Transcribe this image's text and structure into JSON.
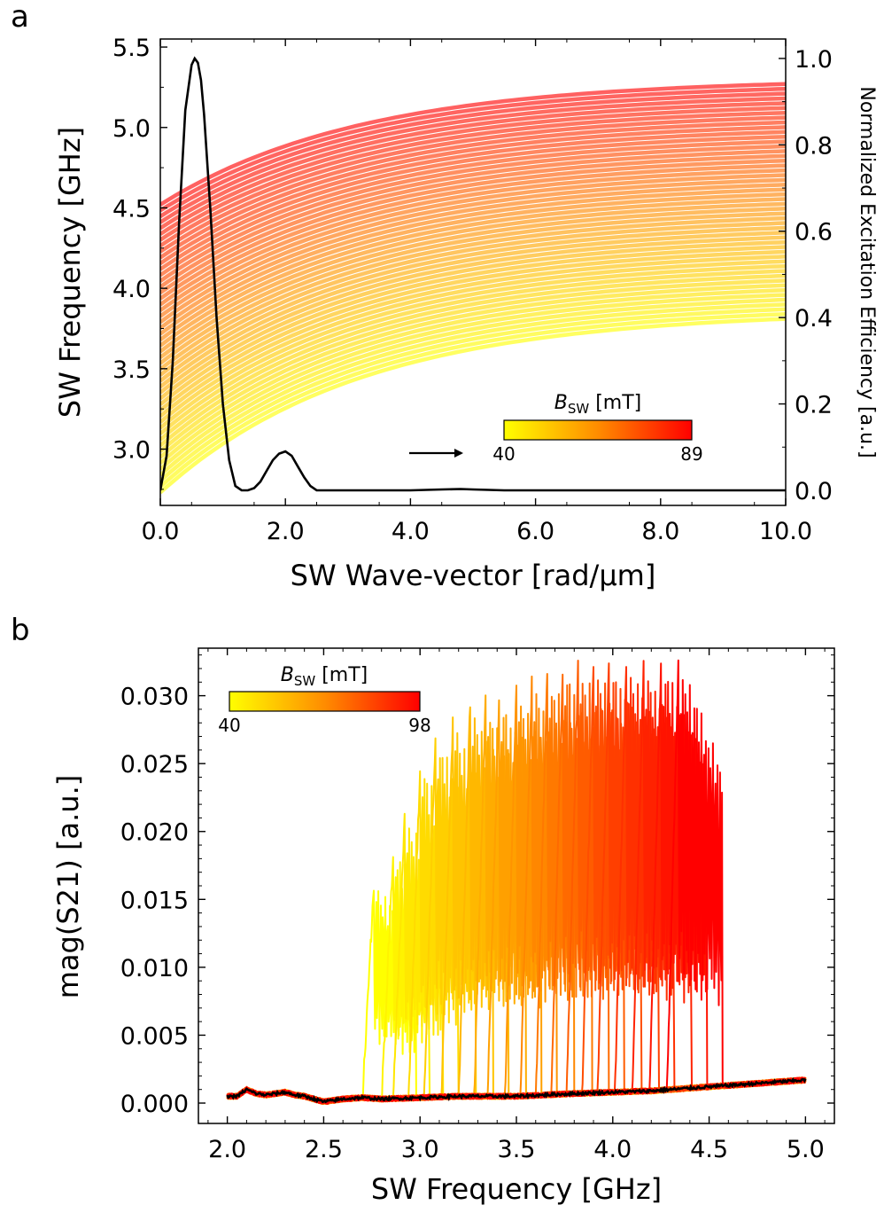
{
  "panel_a_label": "a",
  "panel_b_label": "b",
  "chart_data": [
    {
      "type": "line",
      "title": "",
      "xlabel": "SW Wave-vector [rad/µm]",
      "ylabel": "SW Frequency [GHz]",
      "y2label": "Normalized Excitation Efficiency [a.u.]",
      "xlim": [
        0,
        10
      ],
      "ylim": [
        2.65,
        5.55
      ],
      "y2lim": [
        -0.035,
        1.045
      ],
      "xticks": [
        0,
        2,
        4,
        6,
        8,
        10
      ],
      "xtick_labels": [
        "0.0",
        "2.0",
        "4.0",
        "6.0",
        "8.0",
        "10.0"
      ],
      "yticks": [
        3.0,
        3.5,
        4.0,
        4.5,
        5.0,
        5.5
      ],
      "ytick_labels": [
        "3.0",
        "3.5",
        "4.0",
        "4.5",
        "5.0",
        "5.5"
      ],
      "y2ticks": [
        0,
        0.2,
        0.4,
        0.6,
        0.8,
        1.0
      ],
      "y2tick_labels": [
        "0.0",
        "0.2",
        "0.4",
        "0.6",
        "0.8",
        "1.0"
      ],
      "dispersion": {
        "field_min": 40,
        "field_max": 89,
        "n_curves": 50,
        "f0_low": 2.73,
        "f_end_low": 3.81,
        "f0_high": 4.52,
        "f_end_high": 5.27,
        "k_scale": 3.2
      },
      "efficiency": {
        "name": "Normalized Excitation Efficiency",
        "x": [
          0.0,
          0.1,
          0.2,
          0.3,
          0.4,
          0.5,
          0.55,
          0.6,
          0.65,
          0.7,
          0.8,
          0.9,
          1.0,
          1.1,
          1.2,
          1.3,
          1.4,
          1.5,
          1.6,
          1.7,
          1.8,
          1.9,
          2.0,
          2.1,
          2.2,
          2.3,
          2.4,
          2.5,
          2.6,
          2.8,
          3.0,
          3.5,
          4.0,
          4.5,
          4.8,
          5.0,
          5.5,
          6.0,
          7.0,
          8.0,
          9.0,
          10.0
        ],
        "y": [
          0.0,
          0.08,
          0.3,
          0.62,
          0.88,
          0.985,
          1.0,
          0.99,
          0.95,
          0.87,
          0.65,
          0.4,
          0.2,
          0.07,
          0.01,
          0.0,
          0.0,
          0.005,
          0.02,
          0.045,
          0.07,
          0.085,
          0.09,
          0.08,
          0.055,
          0.03,
          0.01,
          0.0,
          0.0,
          0.0,
          0.0,
          0.0,
          0.0,
          0.002,
          0.003,
          0.002,
          0.0,
          0.0,
          0.0,
          0.0,
          0.0,
          0.0
        ]
      },
      "annotation": "arrow pointing right",
      "colorbar": {
        "label": "B",
        "label_sub": "SW",
        "label_unit": "[mT]",
        "min_label": "40",
        "max_label": "89",
        "color_min": "#ffff00",
        "color_mid": "#ff8c00",
        "color_max": "#ff0000"
      }
    },
    {
      "type": "line",
      "title": "",
      "xlabel": "SW Frequency [GHz]",
      "ylabel": "mag(S21) [a.u.]",
      "xlim": [
        1.85,
        5.15
      ],
      "ylim": [
        -0.0015,
        0.0335
      ],
      "xticks": [
        2.0,
        2.5,
        3.0,
        3.5,
        4.0,
        4.5,
        5.0
      ],
      "xtick_labels": [
        "2.0",
        "2.5",
        "3.0",
        "3.5",
        "4.0",
        "4.5",
        "5.0"
      ],
      "yticks": [
        0,
        0.005,
        0.01,
        0.015,
        0.02,
        0.025,
        0.03
      ],
      "ytick_labels": [
        "0.000",
        "0.005",
        "0.010",
        "0.015",
        "0.020",
        "0.025",
        "0.030"
      ],
      "series_fields_mT": [
        40,
        43,
        46,
        49,
        52,
        55,
        58,
        61,
        64,
        67,
        70,
        73,
        76,
        79,
        82,
        85,
        88,
        91,
        94,
        98
      ],
      "series_onset_GHz": [
        2.7,
        2.8,
        2.86,
        2.94,
        3.02,
        3.11,
        3.2,
        3.28,
        3.35,
        3.44,
        3.52,
        3.6,
        3.68,
        3.76,
        3.84,
        3.92,
        4.01,
        4.1,
        4.19,
        4.28
      ],
      "series_cutoff_GHz": [
        2.98,
        3.05,
        3.12,
        3.2,
        3.29,
        3.38,
        3.46,
        3.55,
        3.63,
        3.71,
        3.8,
        3.89,
        3.98,
        4.06,
        4.15,
        4.24,
        4.32,
        4.41,
        4.49,
        4.57
      ],
      "series_peak": [
        0.016,
        0.0185,
        0.021,
        0.0245,
        0.027,
        0.028,
        0.0295,
        0.0297,
        0.03,
        0.0305,
        0.031,
        0.0315,
        0.032,
        0.0322,
        0.0323,
        0.0322,
        0.0323,
        0.0324,
        0.0324,
        0.0322
      ],
      "background": {
        "name": "background",
        "x": [
          2.0,
          2.05,
          2.1,
          2.15,
          2.2,
          2.25,
          2.3,
          2.35,
          2.4,
          2.45,
          2.5,
          2.6,
          2.7,
          2.8,
          3.0,
          3.2,
          3.5,
          3.8,
          4.0,
          4.2,
          4.5,
          4.7,
          4.9,
          5.0
        ],
        "y": [
          0.0005,
          0.0005,
          0.001,
          0.0007,
          0.0006,
          0.0007,
          0.0008,
          0.0006,
          0.0005,
          0.0003,
          0.0001,
          0.0003,
          0.0004,
          0.0003,
          0.0004,
          0.0005,
          0.0005,
          0.0007,
          0.0008,
          0.0009,
          0.0012,
          0.0014,
          0.0016,
          0.0017
        ]
      },
      "colorbar": {
        "label": "B",
        "label_sub": "SW",
        "label_unit": "[mT]",
        "min_label": "40",
        "max_label": "98",
        "color_min": "#ffff00",
        "color_mid": "#ff8c00",
        "color_max": "#ff0000"
      }
    }
  ]
}
